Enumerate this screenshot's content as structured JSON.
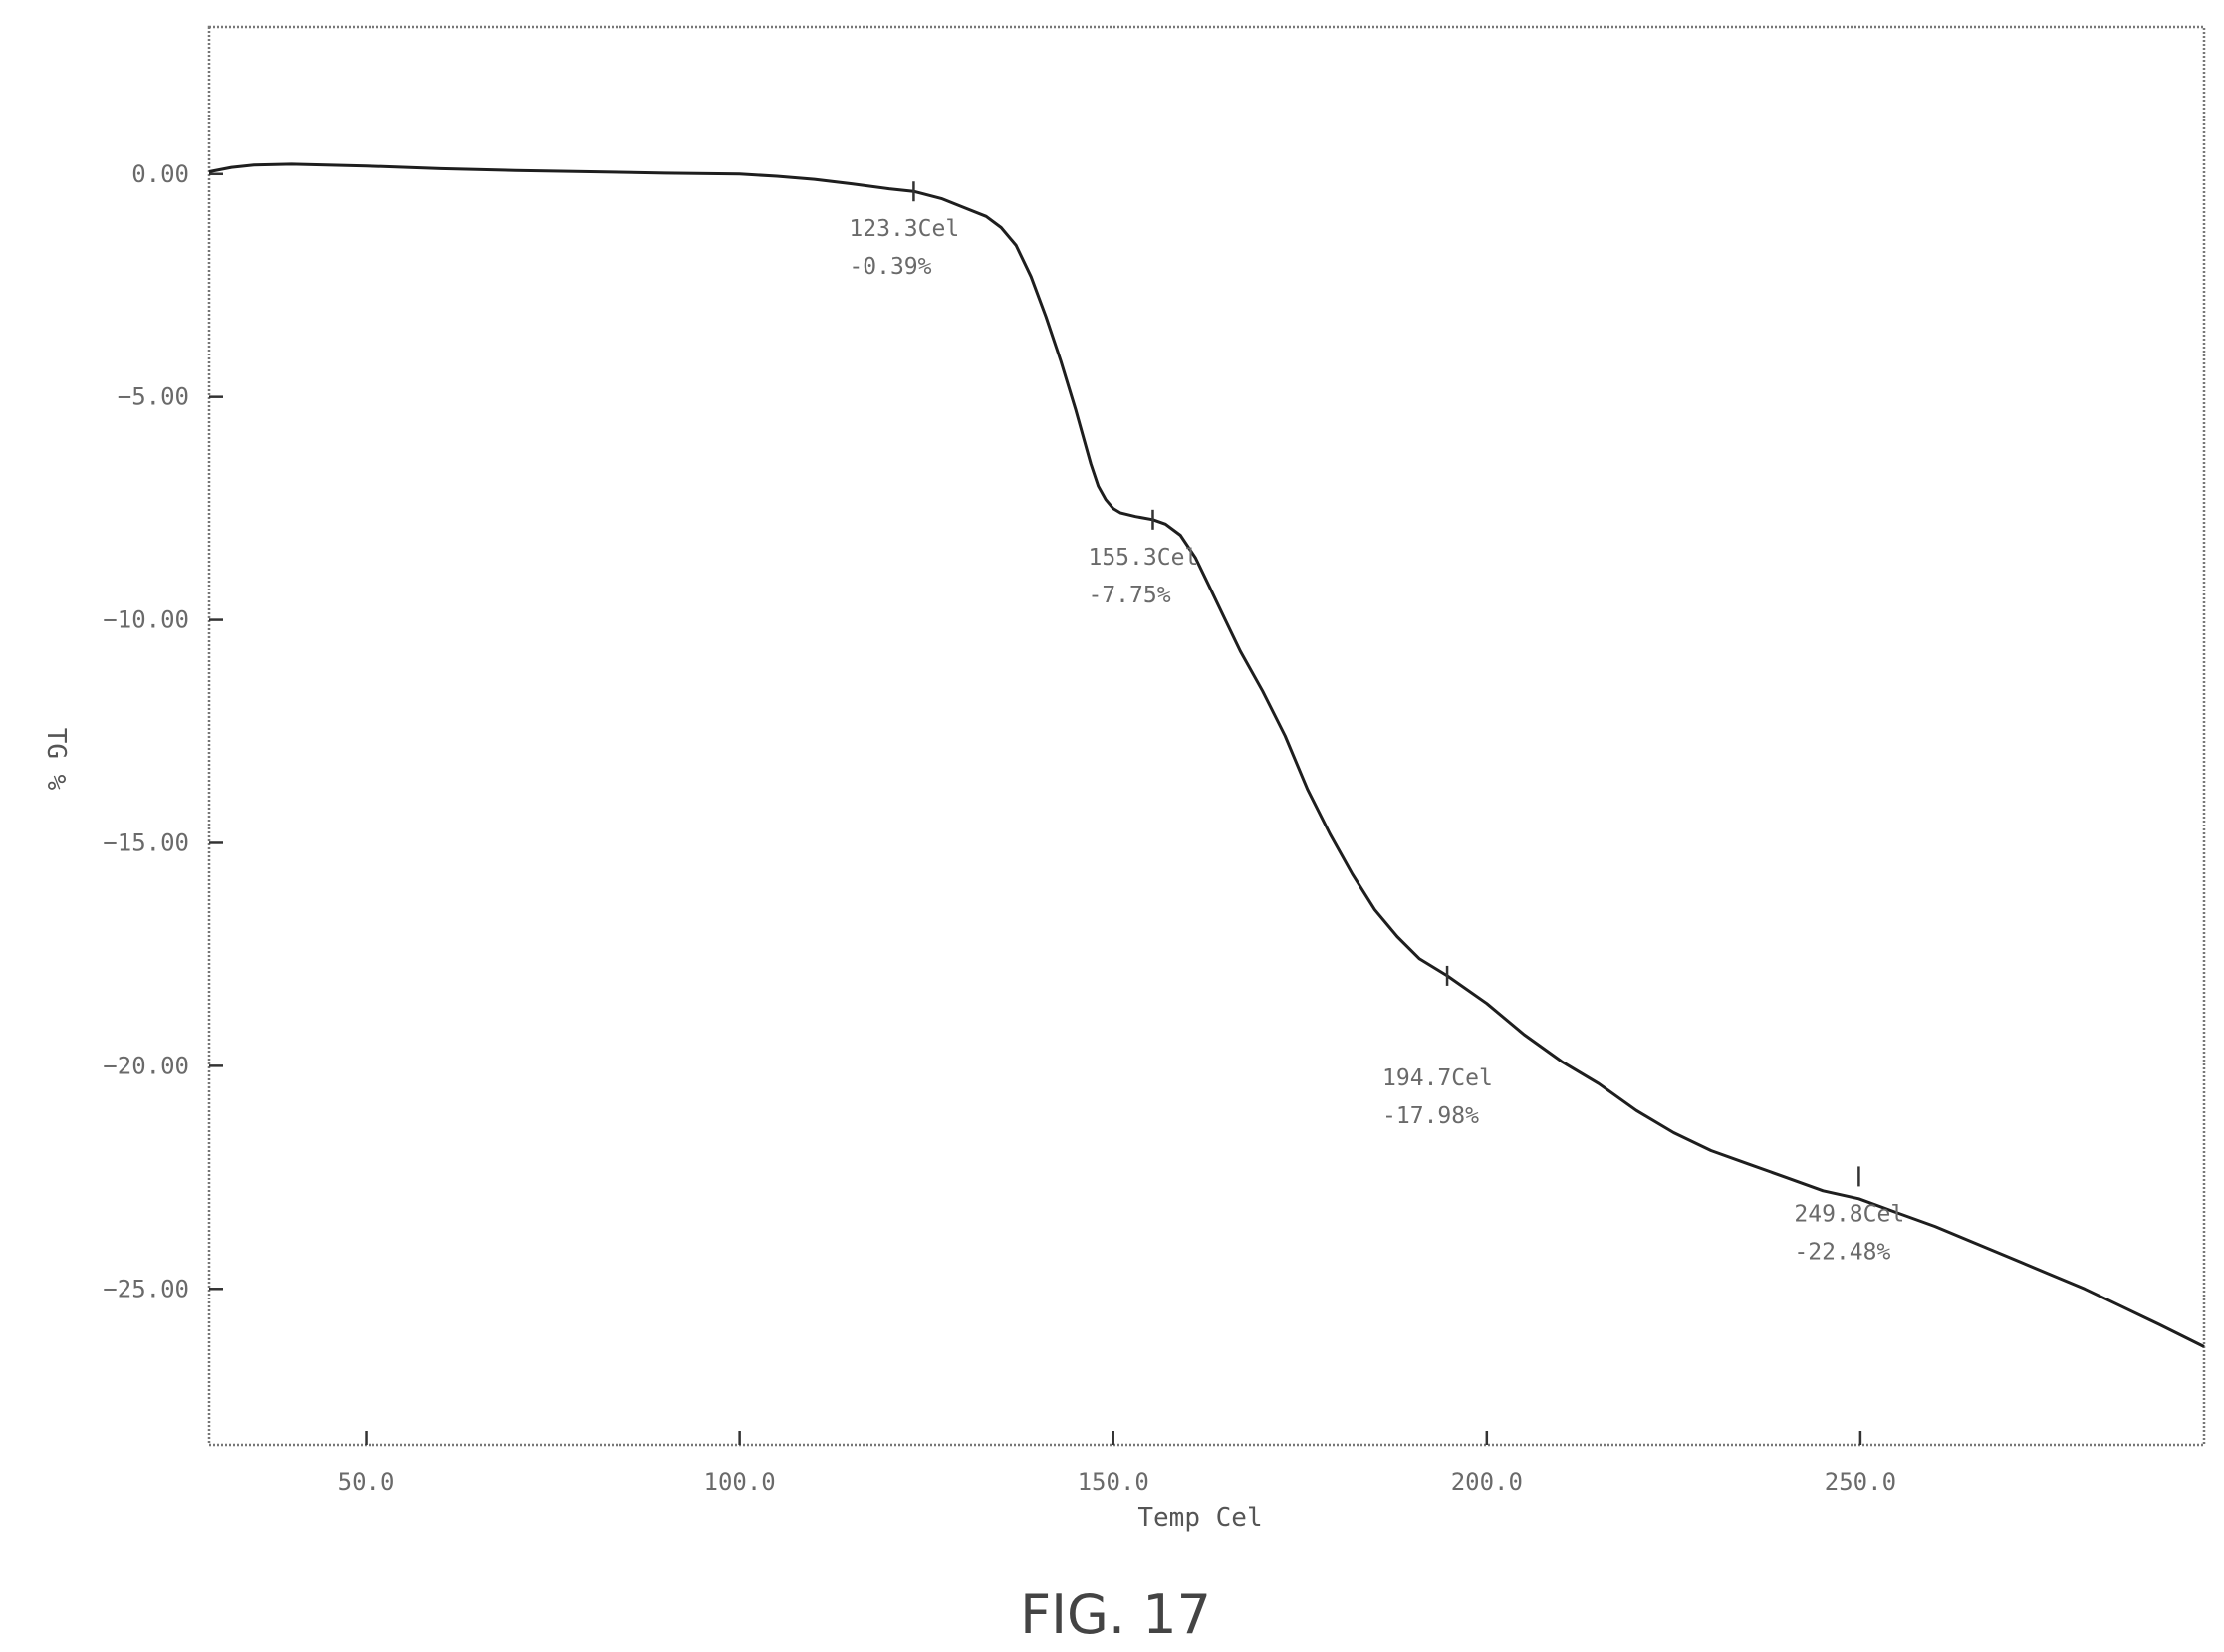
{
  "chart_data": {
    "type": "line",
    "xlabel": "Temp Cel",
    "ylabel": "TG %",
    "xlim": [
      29,
      296
    ],
    "ylim": [
      -28.5,
      3.3
    ],
    "x_ticks": [
      {
        "value": 50,
        "label": "50.0"
      },
      {
        "value": 100,
        "label": "100.0"
      },
      {
        "value": 150,
        "label": "150.0"
      },
      {
        "value": 200,
        "label": "200.0"
      },
      {
        "value": 250,
        "label": "250.0"
      }
    ],
    "y_ticks": [
      {
        "value": 0,
        "label": "0.00"
      },
      {
        "value": -5,
        "label": "−5.00"
      },
      {
        "value": -10,
        "label": "−10.00"
      },
      {
        "value": -15,
        "label": "−15.00"
      },
      {
        "value": -20,
        "label": "−20.00"
      },
      {
        "value": -25,
        "label": "−25.00"
      }
    ],
    "grid": false,
    "series": [
      {
        "x": [
          29,
          32,
          35,
          40,
          50,
          60,
          70,
          80,
          90,
          100,
          105,
          110,
          115,
          120,
          123.3,
          127,
          130,
          133,
          135,
          137,
          139,
          141,
          143,
          145,
          146,
          147,
          148,
          149,
          150,
          151,
          153,
          155.3,
          157,
          159,
          161,
          163,
          165,
          167,
          170,
          173,
          176,
          179,
          182,
          185,
          188,
          191,
          194.7,
          200,
          205,
          210,
          215,
          220,
          225,
          230,
          235,
          240,
          245,
          249.8,
          255,
          260,
          265,
          270,
          275,
          280,
          285,
          290,
          296
        ],
        "y": [
          0.05,
          0.15,
          0.2,
          0.22,
          0.18,
          0.12,
          0.08,
          0.05,
          0.02,
          0.0,
          -0.05,
          -0.12,
          -0.22,
          -0.33,
          -0.39,
          -0.55,
          -0.75,
          -0.95,
          -1.2,
          -1.6,
          -2.3,
          -3.2,
          -4.2,
          -5.3,
          -5.9,
          -6.5,
          -7.0,
          -7.3,
          -7.5,
          -7.6,
          -7.68,
          -7.75,
          -7.85,
          -8.1,
          -8.6,
          -9.3,
          -10.0,
          -10.7,
          -11.6,
          -12.6,
          -13.8,
          -14.8,
          -15.7,
          -16.5,
          -17.1,
          -17.6,
          -17.98,
          -18.6,
          -19.3,
          -19.9,
          -20.4,
          -21.0,
          -21.5,
          -21.9,
          -22.2,
          -22.5,
          -22.8,
          -22.98,
          -23.3,
          -23.6,
          -23.95,
          -24.3,
          -24.65,
          -25.0,
          -25.4,
          -25.8,
          -26.3
        ]
      }
    ],
    "annotations": [
      {
        "x": 123.3,
        "y": -0.39,
        "lines": [
          "123.3Cel",
          "-0.39%"
        ]
      },
      {
        "x": 155.3,
        "y": -7.75,
        "lines": [
          "155.3Cel",
          "-7.75%"
        ]
      },
      {
        "x": 194.7,
        "y": -17.98,
        "lines": [
          "194.7Cel",
          "-17.98%"
        ]
      },
      {
        "x": 249.8,
        "y": -22.48,
        "lines": [
          "249.8Cel",
          "-22.48%"
        ]
      }
    ]
  },
  "caption": "FIG. 17"
}
